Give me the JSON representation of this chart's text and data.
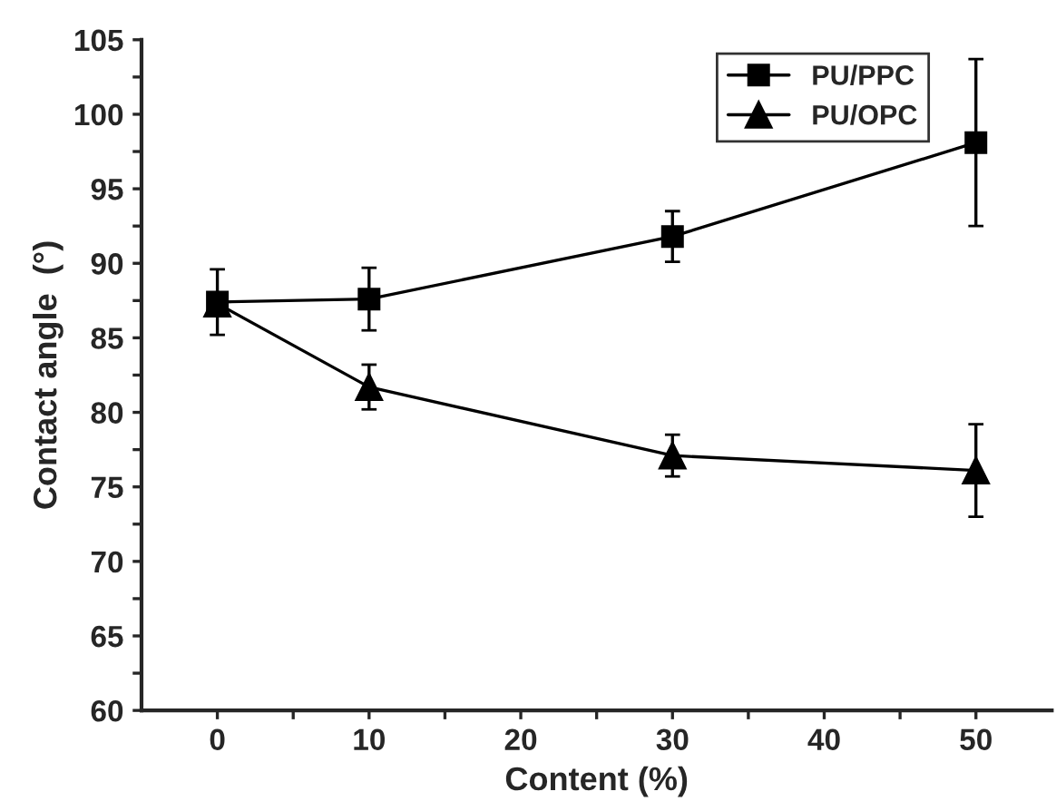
{
  "chart_data": {
    "type": "line",
    "xlabel": "Content (%)",
    "ylabel": "Contact angle  (°)",
    "x": [
      0,
      10,
      30,
      50
    ],
    "series": [
      {
        "name": "PU/PPC",
        "color": "#000000",
        "marker": "square",
        "values": [
          87.4,
          87.6,
          91.8,
          98.1
        ],
        "errors": [
          2.2,
          2.1,
          1.7,
          5.6
        ]
      },
      {
        "name": "PU/OPC",
        "color": "#000000",
        "marker": "triangle",
        "values": [
          87.3,
          81.7,
          77.1,
          76.1
        ],
        "errors": [
          null,
          1.5,
          1.4,
          3.1
        ]
      }
    ],
    "xlim": [
      -5,
      55
    ],
    "ylim": [
      60,
      105
    ],
    "xticks": [
      0,
      {
        "value": 5,
        "label": null
      },
      10,
      {
        "value": 15,
        "label": null
      },
      20,
      {
        "value": 25,
        "label": null
      },
      30,
      {
        "value": 35,
        "label": null
      },
      40,
      {
        "value": 45,
        "label": null
      },
      50
    ],
    "yticks": [
      60,
      {
        "value": 62.5,
        "label": null
      },
      65,
      {
        "value": 67.5,
        "label": null
      },
      70,
      {
        "value": 72.5,
        "label": null
      },
      75,
      {
        "value": 77.5,
        "label": null
      },
      80,
      {
        "value": 82.5,
        "label": null
      },
      85,
      {
        "value": 87.5,
        "label": null
      },
      90,
      {
        "value": 92.5,
        "label": null
      },
      95,
      {
        "value": 97.5,
        "label": null
      },
      100,
      {
        "value": 102.5,
        "label": null
      },
      105
    ],
    "grid": false,
    "legend": "top right",
    "line_style": "solid"
  }
}
